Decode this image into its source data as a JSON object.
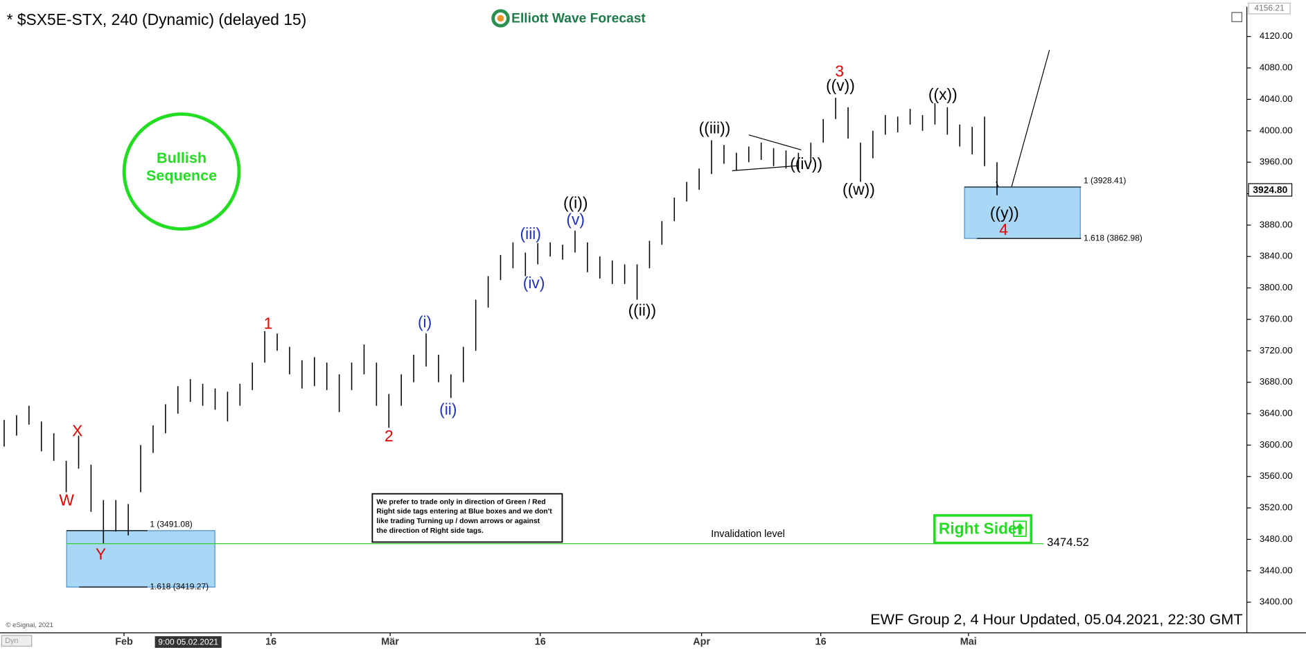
{
  "chart_data": {
    "type": "hlbar",
    "title": "* $SX5E-STX, 240 (Dynamic) (delayed 15)",
    "brand": "Elliott Wave Forecast",
    "color": "#000000",
    "high": [
      3632,
      3638,
      3650,
      3630,
      3615,
      3580,
      3612,
      3575,
      3530,
      3530,
      3525,
      3600,
      3625,
      3652,
      3675,
      3684,
      3678,
      3672,
      3668,
      3678,
      3705,
      3745,
      3742,
      3725,
      3708,
      3712,
      3705,
      3690,
      3705,
      3728,
      3705,
      3665,
      3690,
      3715,
      3742,
      3715,
      3690,
      3725,
      3785,
      3815,
      3842,
      3858,
      3845,
      3857,
      3858,
      3855,
      3873,
      3858,
      3840,
      3835,
      3830,
      3830,
      3860,
      3885,
      3915,
      3935,
      3952,
      3988,
      3982,
      3972,
      3980,
      3985,
      3978,
      3975,
      3972,
      3985,
      4015,
      4042,
      4030,
      3985,
      4000,
      4020,
      4018,
      4028,
      4020,
      4035,
      4030,
      4008,
      4005,
      4018,
      3960
    ],
    "low": [
      3598,
      3612,
      3626,
      3592,
      3580,
      3540,
      3570,
      3515,
      3475,
      3490,
      3485,
      3540,
      3590,
      3615,
      3640,
      3655,
      3650,
      3645,
      3630,
      3650,
      3670,
      3705,
      3720,
      3690,
      3672,
      3675,
      3670,
      3642,
      3670,
      3690,
      3650,
      3622,
      3650,
      3680,
      3700,
      3680,
      3660,
      3680,
      3720,
      3775,
      3810,
      3825,
      3815,
      3830,
      3840,
      3836,
      3845,
      3820,
      3812,
      3805,
      3805,
      3785,
      3825,
      3855,
      3885,
      3910,
      3925,
      3945,
      3958,
      3950,
      3960,
      3963,
      3955,
      3952,
      3948,
      3962,
      3985,
      4015,
      3990,
      3935,
      3965,
      3995,
      3998,
      4008,
      4000,
      4008,
      3995,
      3980,
      3970,
      3955,
      3918
    ],
    "xlim": [
      0,
      100
    ],
    "xticks": [
      {
        "value": 9.66,
        "label": "Feb"
      },
      {
        "value": 21.5,
        "label": "16"
      },
      {
        "value": 31.1,
        "label": "Mär"
      },
      {
        "value": 43.2,
        "label": "16"
      },
      {
        "value": 56.2,
        "label": "Apr"
      },
      {
        "value": 65.8,
        "label": "16"
      },
      {
        "value": 77.7,
        "label": "Mai"
      }
    ],
    "ylim": [
      3361,
      4158
    ],
    "yticks": [
      {
        "value": 3400,
        "label": "3400.00"
      },
      {
        "value": 3440,
        "label": "3440.00"
      },
      {
        "value": 3480,
        "label": "3480.00"
      },
      {
        "value": 3520,
        "label": "3520.00"
      },
      {
        "value": 3560,
        "label": "3560.00"
      },
      {
        "value": 3600,
        "label": "3600.00"
      },
      {
        "value": 3640,
        "label": "3640.00"
      },
      {
        "value": 3680,
        "label": "3680.00"
      },
      {
        "value": 3720,
        "label": "3720.00"
      },
      {
        "value": 3760,
        "label": "3760.00"
      },
      {
        "value": 3800,
        "label": "3800.00"
      },
      {
        "value": 3840,
        "label": "3840.00"
      },
      {
        "value": 3880,
        "label": "3880.00"
      },
      {
        "value": 3920,
        "label": "3920.00"
      },
      {
        "value": 3960,
        "label": "3960.00"
      },
      {
        "value": 4000,
        "label": "4000.00"
      },
      {
        "value": 4040,
        "label": "4040.00"
      },
      {
        "value": 4080,
        "label": "4080.00"
      },
      {
        "value": 4120,
        "label": "4120.00"
      }
    ],
    "cursor_label": "9:00 05.02.2021",
    "last_price": {
      "value": 3924.8,
      "label": "3924.80"
    },
    "high_price": 4156.21,
    "wave_labels": [
      {
        "text": "W",
        "color": "#e00000"
      },
      {
        "text": "X",
        "color": "#e00000"
      },
      {
        "text": "Y",
        "color": "#e00000"
      },
      {
        "text": "1",
        "color": "#e00000"
      },
      {
        "text": "2",
        "color": "#e00000"
      },
      {
        "text": "(i)",
        "color": "#1f2fbf"
      },
      {
        "text": "(ii)",
        "color": "#1f2fbf"
      },
      {
        "text": "(iii)",
        "color": "#1f2fbf"
      },
      {
        "text": "(iv)",
        "color": "#1f2fbf"
      },
      {
        "text": "(v)",
        "color": "#1f2fbf"
      },
      {
        "text": "((i))",
        "color": "#000000"
      },
      {
        "text": "((ii))",
        "color": "#000000"
      },
      {
        "text": "((iii))",
        "color": "#000000"
      },
      {
        "text": "((iv))",
        "color": "#000000"
      },
      {
        "text": "((v))",
        "color": "#000000"
      },
      {
        "text": "3",
        "color": "#e00000"
      },
      {
        "text": "((w))",
        "color": "#000000"
      },
      {
        "text": "((x))",
        "color": "#000000"
      },
      {
        "text": "((y))",
        "color": "#000000"
      },
      {
        "text": "4",
        "color": "#e00000"
      }
    ],
    "bullish": [
      "Bullish",
      "Sequence"
    ],
    "bullish_color": "#22dd22",
    "box_color": "#a9d7f6",
    "boxes": [
      {
        "levels": [
          {
            "value": 3928.41,
            "label": "1 (3928.41)"
          },
          {
            "value": 3862.98,
            "label": "1.618 (3862.98)"
          }
        ]
      },
      {
        "levels": [
          {
            "value": 3491.08,
            "label": "1 (3491.08)"
          },
          {
            "value": 3419.27,
            "label": "1.618 (3419.27)"
          }
        ]
      }
    ],
    "invalidation": {
      "label": "Invalidation level",
      "value": 3474.52,
      "color": "#33cc33"
    },
    "note": [
      "We prefer to trade only in direction of Green / Red",
      "Right side tags entering at Blue boxes and we don't",
      "like trading Turning up / down arrows or against",
      "the direction of Right side tags."
    ],
    "right_side": "Right Side",
    "footer": "EWF Group 2, 4 Hour Updated, 05.04.2021, 22:30 GMT",
    "copyright": "© eSignal, 2021",
    "dyn": "Dyn"
  }
}
